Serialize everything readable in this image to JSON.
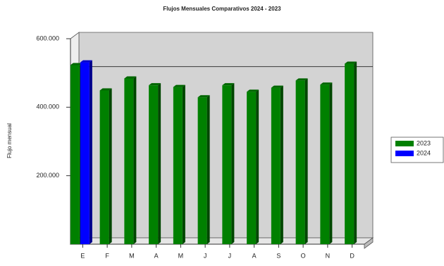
{
  "chart_data": {
    "type": "bar3d",
    "title": "Flujos Mensuales Comparativos 2024 - 2023",
    "y_label": "Flujo mensual",
    "categories": [
      "E",
      "F",
      "M",
      "A",
      "M",
      "J",
      "J",
      "A",
      "S",
      "O",
      "N",
      "D"
    ],
    "series": [
      {
        "name": "2023",
        "color": "#008000",
        "values": [
          523000,
          449000,
          484000,
          464000,
          459000,
          429000,
          464000,
          445000,
          457000,
          478000,
          466000,
          527000
        ]
      },
      {
        "name": "2024",
        "color": "#0000ff",
        "values": [
          531000,
          null,
          null,
          null,
          null,
          null,
          null,
          null,
          null,
          null,
          null,
          null
        ]
      }
    ],
    "ylim": [
      0,
      600000
    ],
    "yticks": [
      {
        "value": 200000,
        "label": "200.000"
      },
      {
        "value": 400000,
        "label": "400.000"
      },
      {
        "value": 600000,
        "label": "600.000"
      }
    ],
    "reference_line": 500000,
    "legend": "right"
  }
}
